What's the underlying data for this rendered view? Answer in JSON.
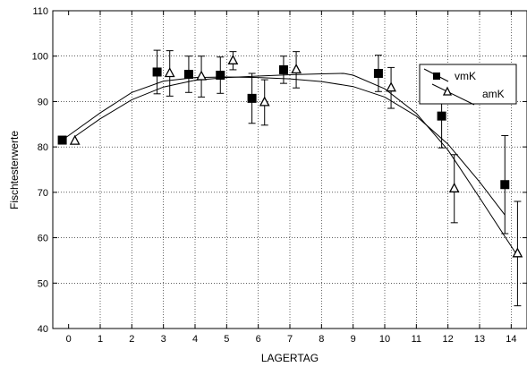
{
  "chart_data": {
    "type": "scatter",
    "title": "",
    "xlabel": "LAGERTAG",
    "ylabel": "Fischtesterwerte",
    "xlim": [
      -0.5,
      14.5
    ],
    "ylim": [
      40,
      110
    ],
    "x_ticks": [
      "0",
      "1",
      "2",
      "3",
      "4",
      "5",
      "6",
      "7",
      "8",
      "9",
      "10",
      "11",
      "12",
      "13",
      "14"
    ],
    "y_ticks": [
      "40",
      "50",
      "60",
      "70",
      "80",
      "90",
      "100",
      "110"
    ],
    "grid": "dotted",
    "legend_position": "top-right",
    "series": [
      {
        "name": "vmK",
        "marker": "filled-square",
        "x": [
          -0.2,
          2.8,
          3.8,
          4.8,
          5.8,
          6.8,
          9.8,
          11.8,
          13.8
        ],
        "y": [
          81.5,
          96.5,
          96.0,
          95.8,
          90.7,
          97.0,
          96.2,
          86.8,
          71.7
        ],
        "err": [
          0,
          4.8,
          4.0,
          4.0,
          5.5,
          3.0,
          4.0,
          7.0,
          10.8
        ],
        "fit": [
          [
            -0.2,
            81.5
          ],
          [
            1,
            87.5
          ],
          [
            2,
            92.0
          ],
          [
            3,
            94.5
          ],
          [
            4,
            95.3
          ],
          [
            5,
            95.4
          ],
          [
            6,
            95.3
          ],
          [
            7,
            95.0
          ],
          [
            8,
            94.4
          ],
          [
            9,
            93.3
          ],
          [
            10,
            91.0
          ],
          [
            11,
            86.8
          ],
          [
            12,
            80.6
          ],
          [
            13,
            72.3
          ],
          [
            13.8,
            65.0
          ]
        ]
      },
      {
        "name": "amK",
        "marker": "open-triangle",
        "x": [
          0.2,
          3.2,
          4.2,
          5.2,
          6.2,
          7.2,
          10.2,
          12.2,
          14.2
        ],
        "y": [
          81.3,
          96.2,
          95.5,
          99.0,
          89.8,
          97.0,
          93.0,
          70.8,
          56.5
        ],
        "err": [
          0,
          5.0,
          4.5,
          2.0,
          5.0,
          4.0,
          4.5,
          7.5,
          11.5
        ],
        "fit": [
          [
            0.2,
            82.3
          ],
          [
            1,
            86.2
          ],
          [
            2,
            90.4
          ],
          [
            3,
            93.2
          ],
          [
            4,
            94.7
          ],
          [
            5,
            95.3
          ],
          [
            6,
            95.6
          ],
          [
            7,
            95.9
          ],
          [
            8,
            96.1
          ],
          [
            8.7,
            96.2
          ],
          [
            9,
            95.8
          ],
          [
            10,
            92.8
          ],
          [
            11,
            87.4
          ],
          [
            12,
            79.3
          ],
          [
            13,
            68.8
          ],
          [
            14.2,
            56.0
          ]
        ]
      }
    ]
  },
  "colors": {
    "ink": "#000000",
    "grid": "#000000",
    "background": "#ffffff"
  }
}
